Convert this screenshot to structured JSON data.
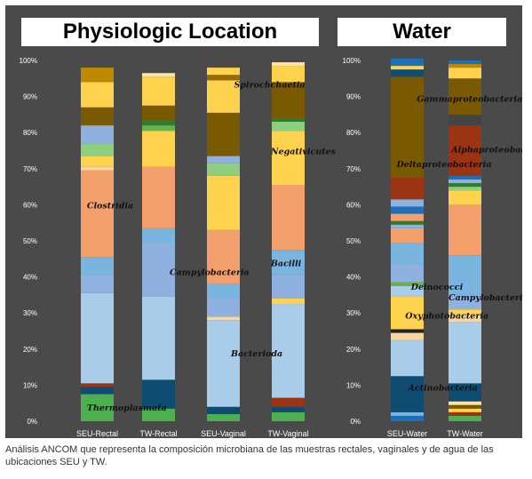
{
  "panel_titles": {
    "left": "Physiologic Location",
    "right": "Water"
  },
  "caption": "Análisis ANCOM que representa la composición microbiana de las muestras rectales, vaginales y de agua de las ubicaciones SEU y TW.",
  "colors": {
    "background": "#4a4a4a"
  },
  "chart_data": [
    {
      "type": "bar",
      "stacked": true,
      "panel": "Physiologic Location",
      "categories": [
        "SEU-Rectal",
        "TW-Rectal",
        "SEU-Vaginal",
        "TW-Vaginal"
      ],
      "ylim": [
        0,
        100
      ],
      "yticks": [
        "0%",
        "10%",
        "20%",
        "30%",
        "40%",
        "50%",
        "60%",
        "70%",
        "80%",
        "90%",
        "100%"
      ],
      "grid": false,
      "stacks": [
        [
          {
            "color": "#4caf50",
            "value": 7.5
          },
          {
            "color": "#0e4c72",
            "value": 2
          },
          {
            "color": "#9a3412",
            "value": 1
          },
          {
            "color": "#a9cde8",
            "value": 25
          },
          {
            "color": "#90b2e0",
            "value": 5
          },
          {
            "color": "#7ab5e0",
            "value": 5
          },
          {
            "color": "#f4a06c",
            "value": 24
          },
          {
            "color": "#f6d7a0",
            "value": 1
          },
          {
            "color": "#ffd34d",
            "value": 3
          },
          {
            "color": "#8ccf7e",
            "value": 3.5
          },
          {
            "color": "#8fb1e0",
            "value": 5
          },
          {
            "color": "#7a5a00",
            "value": 5
          },
          {
            "color": "#ffd24d",
            "value": 7
          },
          {
            "color": "#c08a00",
            "value": 4
          }
        ],
        [
          {
            "color": "#4caf50",
            "value": 3.5
          },
          {
            "color": "#0e4c72",
            "value": 8
          },
          {
            "color": "#a9cde8",
            "value": 23
          },
          {
            "color": "#8fb1e0",
            "value": 15
          },
          {
            "color": "#7ab5e0",
            "value": 4
          },
          {
            "color": "#f4a06c",
            "value": 17
          },
          {
            "color": "#ffd34d",
            "value": 10
          },
          {
            "color": "#6ab04c",
            "value": 1.5
          },
          {
            "color": "#2e7d32",
            "value": 1.5
          },
          {
            "color": "#7a5a00",
            "value": 4
          },
          {
            "color": "#ffd24d",
            "value": 8
          },
          {
            "color": "#f6e3b0",
            "value": 1
          }
        ],
        [
          {
            "color": "#4caf50",
            "value": 2
          },
          {
            "color": "#0e4c72",
            "value": 2
          },
          {
            "color": "#a9cde8",
            "value": 24
          },
          {
            "color": "#f6d7a0",
            "value": 1
          },
          {
            "color": "#8fb1e0",
            "value": 5
          },
          {
            "color": "#7ab5e0",
            "value": 4
          },
          {
            "color": "#f4a06c",
            "value": 15
          },
          {
            "color": "#ffd34d",
            "value": 15
          },
          {
            "color": "#8ccf7e",
            "value": 3.5
          },
          {
            "color": "#8fb1e0",
            "value": 2
          },
          {
            "color": "#7a5a00",
            "value": 12
          },
          {
            "color": "#ffd24d",
            "value": 9
          },
          {
            "color": "#9a6a00",
            "value": 1.5
          },
          {
            "color": "#ffd34d",
            "value": 2
          }
        ],
        [
          {
            "color": "#4caf50",
            "value": 2.5
          },
          {
            "color": "#0e4c72",
            "value": 1.5
          },
          {
            "color": "#9a3412",
            "value": 2.5
          },
          {
            "color": "#a9cde8",
            "value": 26
          },
          {
            "color": "#ffd34d",
            "value": 1.5
          },
          {
            "color": "#8fb1e0",
            "value": 6.5
          },
          {
            "color": "#7ab5e0",
            "value": 7
          },
          {
            "color": "#f4a06c",
            "value": 18
          },
          {
            "color": "#ffd34d",
            "value": 15
          },
          {
            "color": "#8ccf7e",
            "value": 2.5
          },
          {
            "color": "#2e7d32",
            "value": 1
          },
          {
            "color": "#7a5a00",
            "value": 10
          },
          {
            "color": "#ffd24d",
            "value": 4.5
          },
          {
            "color": "#f6e3b0",
            "value": 1
          }
        ]
      ],
      "annotations": [
        {
          "text": "Spirochchaetia",
          "x": 2.5,
          "y": 92.5
        },
        {
          "text": "Negativicutes",
          "x": 3.1,
          "y": 74
        },
        {
          "text": "Clostridia",
          "x": 0.1,
          "y": 59
        },
        {
          "text": "Bacilli",
          "x": 3.1,
          "y": 43
        },
        {
          "text": "Campylobacteria",
          "x": 1.45,
          "y": 40.5
        },
        {
          "text": "Bacterioda",
          "x": 2.45,
          "y": 18
        },
        {
          "text": "Thermoplasmata",
          "x": 0.1,
          "y": 3
        }
      ]
    },
    {
      "type": "bar",
      "stacked": true,
      "panel": "Water",
      "categories": [
        "SEU-Water",
        "TW-Water"
      ],
      "ylim": [
        0,
        100
      ],
      "yticks": [
        "0%",
        "10%",
        "20%",
        "30%",
        "40%",
        "50%",
        "60%",
        "70%",
        "80%",
        "90%",
        "100%"
      ],
      "grid": false,
      "stacks": [
        [
          {
            "color": "#1e6fb5",
            "value": 1.5
          },
          {
            "color": "#7ab5e0",
            "value": 1
          },
          {
            "color": "#0e4c72",
            "value": 10
          },
          {
            "color": "#a9cde8",
            "value": 10
          },
          {
            "color": "#f6d7a0",
            "value": 2
          },
          {
            "color": "#222222",
            "value": 1
          },
          {
            "color": "#ffd34d",
            "value": 9
          },
          {
            "color": "#a9cde8",
            "value": 3
          },
          {
            "color": "#6ab04c",
            "value": 1
          },
          {
            "color": "#8fb1e0",
            "value": 5
          },
          {
            "color": "#7ab5e0",
            "value": 6
          },
          {
            "color": "#f4a06c",
            "value": 4
          },
          {
            "color": "#8fb1e0",
            "value": 1
          },
          {
            "color": "#2e7d32",
            "value": 1
          },
          {
            "color": "#f4a06c",
            "value": 2
          },
          {
            "color": "#1e6fb5",
            "value": 2
          },
          {
            "color": "#8fb1e0",
            "value": 2
          },
          {
            "color": "#9a3412",
            "value": 6
          },
          {
            "color": "#7a5a00",
            "value": 28
          },
          {
            "color": "#0e4c72",
            "value": 2
          },
          {
            "color": "#ffd34d",
            "value": 1
          },
          {
            "color": "#1e6fb5",
            "value": 2
          }
        ],
        [
          {
            "color": "#4caf50",
            "value": 1.5
          },
          {
            "color": "#9a3412",
            "value": 1
          },
          {
            "color": "#ffd34d",
            "value": 1
          },
          {
            "color": "#7a5a00",
            "value": 1
          },
          {
            "color": "#f6e3b0",
            "value": 1
          },
          {
            "color": "#0e4c72",
            "value": 5
          },
          {
            "color": "#a9cde8",
            "value": 17
          },
          {
            "color": "#f6d7a0",
            "value": 2
          },
          {
            "color": "#ffd34d",
            "value": 1.5
          },
          {
            "color": "#8fb1e0",
            "value": 4
          },
          {
            "color": "#7ab5e0",
            "value": 11
          },
          {
            "color": "#f4a06c",
            "value": 14
          },
          {
            "color": "#ffd34d",
            "value": 4
          },
          {
            "color": "#8ccf7e",
            "value": 1
          },
          {
            "color": "#2e7d32",
            "value": 1
          },
          {
            "color": "#8fb1e0",
            "value": 1
          },
          {
            "color": "#1e6fb5",
            "value": 1
          },
          {
            "color": "#9a3412",
            "value": 14
          },
          {
            "color": "#444444",
            "value": 3
          },
          {
            "color": "#7a5a00",
            "value": 10
          },
          {
            "color": "#ffd24d",
            "value": 3
          },
          {
            "color": "#c08a00",
            "value": 1
          },
          {
            "color": "#1e6fb5",
            "value": 1
          }
        ]
      ],
      "annotations": [
        {
          "text": "Gammaproteobacteria",
          "x": 0.45,
          "y": 88.5
        },
        {
          "text": "Alphaproteobacteria",
          "x": 1.05,
          "y": 74.5
        },
        {
          "text": "Deltaproteobacteria",
          "x": 0.1,
          "y": 70.5
        },
        {
          "text": "Deinococci",
          "x": 0.35,
          "y": 36.5
        },
        {
          "text": "Campylobacteria",
          "x": 1.0,
          "y": 33.5
        },
        {
          "text": "Oxyphotobacteria",
          "x": 0.25,
          "y": 28.5
        },
        {
          "text": "Actinobacteria",
          "x": 0.3,
          "y": 8.5
        }
      ]
    }
  ]
}
